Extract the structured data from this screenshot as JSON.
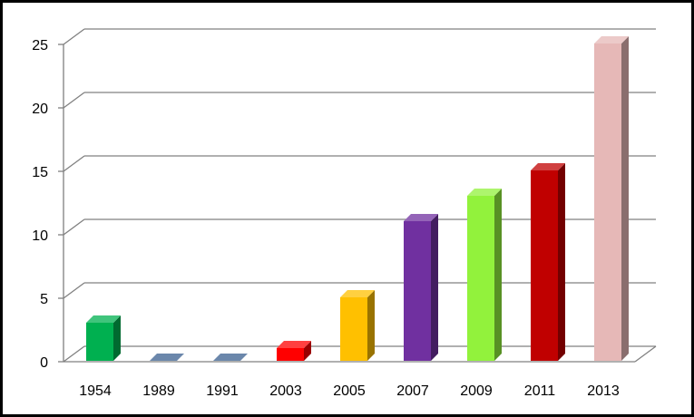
{
  "chart_data": {
    "type": "bar",
    "title": "",
    "xlabel": "",
    "ylabel": "",
    "categories": [
      "1954",
      "1989",
      "1991",
      "2003",
      "2005",
      "2007",
      "2009",
      "2011",
      "2013"
    ],
    "values": [
      3,
      0,
      0,
      1,
      5,
      11,
      13,
      15,
      25
    ],
    "ylim": [
      0,
      25
    ],
    "yticks": [
      0,
      5,
      10,
      15,
      20,
      25
    ],
    "grid": true,
    "legend": "none",
    "style": "3d-column",
    "colors": [
      "#00B050",
      "#3A5F8F",
      "#3A5F8F",
      "#FF0000",
      "#FFC000",
      "#7030A0",
      "#92F23C",
      "#C00000",
      "#E6B8B7"
    ]
  }
}
